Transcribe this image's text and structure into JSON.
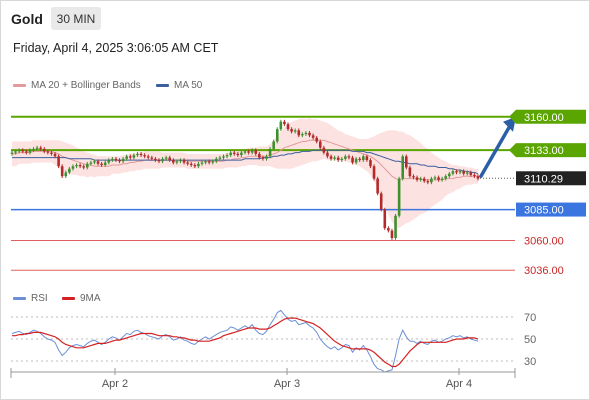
{
  "header": {
    "instrument": "Gold",
    "timeframe": "30 MIN",
    "timestamp": "Friday, April 4, 2025 3:06:05 AM CET"
  },
  "legend": {
    "bollinger_label": "MA 20 + Bollinger Bands",
    "ma50_label": "MA 50",
    "rsi_label": "RSI",
    "rsi_ma_label": "9MA"
  },
  "colors": {
    "resistance": "#5aa500",
    "support_blue": "#3a75e0",
    "support_red": "#e06060",
    "current": "#222222",
    "bollinger_fill": "#fde2e2",
    "ma20": "#e39a9a",
    "ma50": "#3c5f9e",
    "candle_up": "#3f8f2f",
    "candle_down": "#b22a2a",
    "rsi": "#6b8fd6",
    "rsi_ma": "#d42222",
    "arrow": "#2a5fa8"
  },
  "chart_data": [
    {
      "type": "candlestick",
      "ylim": [
        3020,
        3180
      ],
      "x_ticks": [
        "Apr 2",
        "Apr 3",
        "Apr 4"
      ],
      "levels": [
        {
          "label": "3160.00",
          "value": 3160.0,
          "kind": "resistance"
        },
        {
          "label": "3133.00",
          "value": 3133.0,
          "kind": "resistance"
        },
        {
          "label": "3110.29",
          "value": 3110.29,
          "kind": "current"
        },
        {
          "label": "3085.00",
          "value": 3085.0,
          "kind": "support"
        },
        {
          "label": "3060.00",
          "value": 3060.0,
          "kind": "support_minor"
        },
        {
          "label": "3036.00",
          "value": 3036.0,
          "kind": "support_minor"
        }
      ],
      "projection": {
        "from": 3112,
        "to": 3160
      },
      "close": [
        3131,
        3132,
        3133,
        3132,
        3131,
        3133,
        3134,
        3135,
        3134,
        3132,
        3131,
        3130,
        3128,
        3120,
        3112,
        3115,
        3118,
        3120,
        3121,
        3120,
        3119,
        3122,
        3123,
        3124,
        3122,
        3121,
        3123,
        3125,
        3126,
        3125,
        3124,
        3126,
        3128,
        3127,
        3129,
        3130,
        3129,
        3128,
        3127,
        3126,
        3125,
        3124,
        3126,
        3127,
        3125,
        3123,
        3124,
        3125,
        3123,
        3122,
        3121,
        3120,
        3122,
        3123,
        3124,
        3123,
        3124,
        3126,
        3127,
        3128,
        3129,
        3131,
        3130,
        3129,
        3131,
        3132,
        3131,
        3133,
        3130,
        3127,
        3126,
        3128,
        3134,
        3140,
        3150,
        3156,
        3154,
        3150,
        3148,
        3149,
        3145,
        3146,
        3147,
        3145,
        3143,
        3140,
        3135,
        3131,
        3128,
        3126,
        3127,
        3125,
        3126,
        3128,
        3127,
        3123,
        3126,
        3125,
        3128,
        3125,
        3120,
        3110,
        3098,
        3085,
        3070,
        3068,
        3062,
        3080,
        3110,
        3128,
        3119,
        3112,
        3111,
        3109,
        3110,
        3108,
        3107,
        3110,
        3111,
        3109,
        3110,
        3112,
        3114,
        3116,
        3115,
        3116,
        3114,
        3115,
        3113,
        3112,
        3110
      ],
      "ma20": [
        3130,
        3130,
        3131,
        3131,
        3131,
        3131,
        3132,
        3132,
        3132,
        3132,
        3132,
        3132,
        3131,
        3130,
        3128,
        3127,
        3126,
        3125,
        3124,
        3123,
        3122,
        3121,
        3121,
        3120,
        3120,
        3120,
        3120,
        3120,
        3121,
        3121,
        3121,
        3122,
        3122,
        3123,
        3123,
        3124,
        3124,
        3125,
        3125,
        3125,
        3125,
        3125,
        3125,
        3125,
        3125,
        3125,
        3125,
        3125,
        3125,
        3124,
        3124,
        3124,
        3124,
        3124,
        3124,
        3124,
        3124,
        3124,
        3124,
        3124,
        3125,
        3125,
        3126,
        3126,
        3127,
        3127,
        3128,
        3128,
        3128,
        3128,
        3128,
        3128,
        3129,
        3130,
        3131,
        3133,
        3135,
        3136,
        3137,
        3138,
        3139,
        3140,
        3140,
        3141,
        3141,
        3141,
        3141,
        3141,
        3140,
        3139,
        3138,
        3137,
        3136,
        3135,
        3134,
        3133,
        3132,
        3131,
        3130,
        3129,
        3128,
        3126,
        3124,
        3121,
        3118,
        3115,
        3112,
        3110,
        3109,
        3110,
        3110,
        3110,
        3110,
        3110,
        3110,
        3109,
        3109,
        3109,
        3109,
        3109,
        3109,
        3110,
        3110,
        3110,
        3111,
        3111,
        3112,
        3112,
        3112,
        3112,
        3112
      ],
      "band_width": [
        10,
        10,
        9,
        9,
        9,
        9,
        9,
        9,
        9,
        9,
        9,
        9,
        10,
        11,
        12,
        12,
        12,
        12,
        11,
        11,
        10,
        10,
        9,
        9,
        8,
        8,
        8,
        8,
        7,
        7,
        7,
        7,
        7,
        7,
        7,
        7,
        7,
        7,
        7,
        7,
        7,
        7,
        6,
        6,
        6,
        6,
        6,
        6,
        6,
        6,
        6,
        6,
        6,
        6,
        6,
        6,
        6,
        6,
        6,
        6,
        6,
        6,
        7,
        7,
        7,
        7,
        7,
        7,
        7,
        8,
        8,
        8,
        9,
        11,
        13,
        15,
        17,
        18,
        19,
        19,
        19,
        19,
        18,
        18,
        17,
        17,
        16,
        15,
        15,
        14,
        13,
        12,
        12,
        11,
        11,
        11,
        11,
        11,
        12,
        13,
        15,
        18,
        22,
        26,
        30,
        34,
        37,
        39,
        39,
        38,
        36,
        35,
        33,
        31,
        29,
        27,
        25,
        22,
        20,
        18,
        16,
        14,
        12,
        11,
        10,
        9,
        8,
        7,
        7,
        6,
        6
      ],
      "ma50": [
        3127,
        3127,
        3127,
        3127,
        3127,
        3127,
        3127,
        3127,
        3127,
        3127,
        3127,
        3127,
        3127,
        3127,
        3127,
        3127,
        3126,
        3126,
        3126,
        3126,
        3126,
        3126,
        3126,
        3125,
        3125,
        3125,
        3125,
        3125,
        3125,
        3125,
        3125,
        3125,
        3125,
        3125,
        3125,
        3125,
        3125,
        3125,
        3125,
        3125,
        3125,
        3125,
        3125,
        3125,
        3125,
        3125,
        3125,
        3125,
        3125,
        3125,
        3125,
        3125,
        3125,
        3125,
        3125,
        3125,
        3125,
        3125,
        3125,
        3125,
        3125,
        3125,
        3125,
        3125,
        3125,
        3126,
        3126,
        3126,
        3126,
        3126,
        3127,
        3127,
        3127,
        3128,
        3128,
        3129,
        3129,
        3130,
        3130,
        3131,
        3131,
        3132,
        3132,
        3132,
        3133,
        3133,
        3133,
        3133,
        3133,
        3133,
        3133,
        3133,
        3133,
        3133,
        3133,
        3132,
        3132,
        3132,
        3132,
        3131,
        3131,
        3130,
        3129,
        3128,
        3127,
        3126,
        3125,
        3124,
        3124,
        3123,
        3123,
        3122,
        3122,
        3122,
        3121,
        3121,
        3120,
        3120,
        3120,
        3119,
        3119,
        3119,
        3118,
        3118,
        3117,
        3117,
        3116,
        3116,
        3115,
        3115,
        3114
      ]
    },
    {
      "type": "line",
      "ylim": [
        20,
        80
      ],
      "y_ticks": [
        70,
        50,
        30
      ],
      "series": [
        {
          "name": "RSI",
          "values": [
            55,
            56,
            57,
            55,
            54,
            56,
            58,
            57,
            55,
            52,
            50,
            49,
            47,
            40,
            35,
            38,
            42,
            44,
            45,
            44,
            43,
            46,
            48,
            49,
            47,
            45,
            47,
            50,
            52,
            51,
            49,
            52,
            55,
            54,
            57,
            58,
            56,
            55,
            53,
            52,
            51,
            50,
            53,
            54,
            52,
            49,
            50,
            52,
            49,
            48,
            46,
            45,
            48,
            50,
            52,
            50,
            52,
            54,
            56,
            57,
            58,
            61,
            60,
            58,
            60,
            62,
            60,
            63,
            58,
            55,
            54,
            57,
            63,
            68,
            74,
            76,
            72,
            68,
            66,
            67,
            63,
            64,
            65,
            62,
            60,
            56,
            50,
            46,
            43,
            41,
            43,
            40,
            42,
            45,
            44,
            38,
            42,
            40,
            44,
            40,
            34,
            27,
            23,
            22,
            20,
            21,
            22,
            35,
            50,
            58,
            52,
            48,
            48,
            46,
            48,
            46,
            45,
            48,
            49,
            47,
            48,
            50,
            51,
            53,
            52,
            53,
            51,
            52,
            50,
            49,
            48
          ]
        },
        {
          "name": "9MA",
          "values": [
            53,
            53,
            54,
            54,
            55,
            55,
            56,
            56,
            56,
            55,
            54,
            53,
            52,
            50,
            47,
            45,
            44,
            43,
            42,
            42,
            42,
            43,
            44,
            45,
            46,
            46,
            46,
            47,
            48,
            49,
            49,
            50,
            51,
            52,
            53,
            54,
            55,
            55,
            55,
            55,
            54,
            53,
            53,
            53,
            53,
            52,
            52,
            51,
            51,
            50,
            49,
            49,
            48,
            48,
            48,
            48,
            49,
            50,
            51,
            53,
            54,
            55,
            56,
            57,
            58,
            59,
            60,
            60,
            60,
            59,
            59,
            59,
            60,
            62,
            64,
            66,
            68,
            69,
            69,
            69,
            68,
            67,
            66,
            65,
            64,
            62,
            60,
            57,
            54,
            51,
            48,
            46,
            44,
            43,
            42,
            41,
            41,
            41,
            41,
            41,
            40,
            38,
            35,
            32,
            29,
            27,
            25,
            25,
            27,
            31,
            35,
            39,
            42,
            45,
            47,
            47,
            47,
            47,
            47,
            47,
            47,
            47,
            48,
            49,
            50,
            50,
            50,
            51,
            51,
            51,
            50
          ]
        }
      ]
    }
  ]
}
